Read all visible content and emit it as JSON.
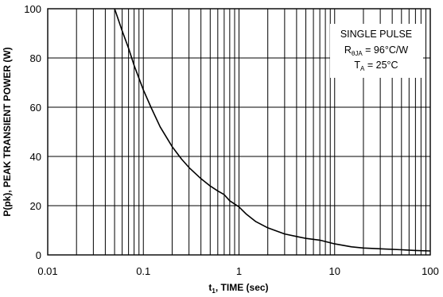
{
  "chart_data": {
    "type": "line",
    "xscale": "log",
    "xlim": [
      0.01,
      100
    ],
    "ylim": [
      0,
      100
    ],
    "xlabel_main": "t",
    "xlabel_sub": "1",
    "xlabel_rest": ", TIME (sec)",
    "ylabel": "P(pk), PEAK TRANSIENT POWER (W)",
    "xticks": [
      0.01,
      0.1,
      1,
      10,
      100
    ],
    "xtick_labels": [
      "0.01",
      "0.1",
      "1",
      "10",
      "100"
    ],
    "yticks": [
      0,
      20,
      40,
      60,
      80,
      100
    ],
    "ytick_labels": [
      "0",
      "20",
      "40",
      "60",
      "80",
      "100"
    ],
    "grid": true,
    "legend_position": "top-right",
    "annotation": {
      "line1": "SINGLE PULSE",
      "line2_main": "R",
      "line2_sub": "θJA",
      "line2_rest": " = 96°C/W",
      "line3_main": "T",
      "line3_sub": "A",
      "line3_rest": " = 25°C"
    },
    "series": [
      {
        "x": [
          0.05,
          0.06,
          0.07,
          0.08,
          0.1,
          0.12,
          0.15,
          0.2,
          0.25,
          0.3,
          0.4,
          0.5,
          0.6,
          0.7,
          0.8,
          1.0,
          1.2,
          1.5,
          2,
          3,
          4,
          5,
          7,
          10,
          15,
          20,
          30,
          50,
          70,
          100
        ],
        "y": [
          100,
          91,
          84,
          77,
          67,
          60,
          52,
          44,
          39,
          35.5,
          31,
          28,
          26,
          24.5,
          22,
          19.5,
          16.5,
          13.5,
          11,
          8.5,
          7.5,
          6.7,
          6,
          4.5,
          3.3,
          2.8,
          2.5,
          2.1,
          1.8,
          1.6
        ]
      }
    ]
  }
}
